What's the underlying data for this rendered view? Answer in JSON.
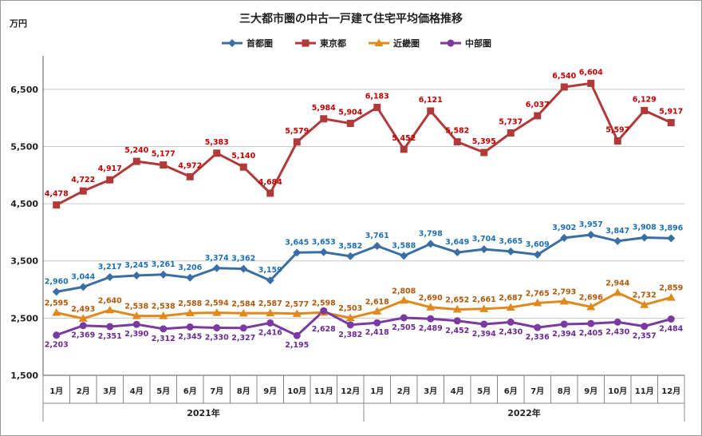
{
  "chart_data": {
    "type": "line",
    "title": "三大都市圏の中古一戸建て住宅平均価格推移",
    "ylabel": "万円",
    "ylim": [
      1500,
      7000
    ],
    "yticks": [
      "1,500",
      "2,500",
      "3,500",
      "4,500",
      "5,500",
      "6,500"
    ],
    "ytick_values": [
      1500,
      2500,
      3500,
      4500,
      5500,
      6500
    ],
    "grid": "horizontal",
    "legend_position": "top-center",
    "categories": [
      "1月",
      "2月",
      "3月",
      "4月",
      "5月",
      "6月",
      "7月",
      "8月",
      "9月",
      "10月",
      "11月",
      "12月",
      "1月",
      "2月",
      "3月",
      "4月",
      "5月",
      "6月",
      "7月",
      "8月",
      "9月",
      "10月",
      "11月",
      "12月"
    ],
    "year_groups": [
      {
        "label": "2021年",
        "count": 12
      },
      {
        "label": "2022年",
        "count": 12
      }
    ],
    "series": [
      {
        "name": "首都圏",
        "color": "#3a6ea5",
        "marker": "diamond",
        "values": [
          2960,
          3044,
          3217,
          3245,
          3261,
          3206,
          3374,
          3362,
          3159,
          3645,
          3653,
          3582,
          3761,
          3588,
          3798,
          3649,
          3704,
          3665,
          3609,
          3902,
          3957,
          3847,
          3908,
          3896
        ],
        "labels": [
          "2,960",
          "3,044",
          "3,217",
          "3,245",
          "3,261",
          "3,206",
          "3,374",
          "3,362",
          "3,159",
          "3,645",
          "3,653",
          "3,582",
          "3,761",
          "3,588",
          "3,798",
          "3,649",
          "3,704",
          "3,665",
          "3,609",
          "3,902",
          "3,957",
          "3,847",
          "3,908",
          "3,896"
        ]
      },
      {
        "name": "東京都",
        "color": "#b03a3a",
        "marker": "square",
        "values": [
          4478,
          4722,
          4917,
          5240,
          5177,
          4972,
          5383,
          5140,
          4684,
          5579,
          5984,
          5904,
          6183,
          5452,
          6121,
          5582,
          5395,
          5737,
          6037,
          6540,
          6604,
          5597,
          6129,
          5917
        ],
        "labels": [
          "4,478",
          "4,722",
          "4,917",
          "5,240",
          "5,177",
          "4,972",
          "5,383",
          "5,140",
          "4,684",
          "5,579",
          "5,984",
          "5,904",
          "6,183",
          "5,452",
          "6,121",
          "5,582",
          "5,395",
          "5,737",
          "6,037",
          "6,540",
          "6,604",
          "5,597",
          "6,129",
          "5,917"
        ]
      },
      {
        "name": "近畿圏",
        "color": "#e08a1e",
        "marker": "triangle",
        "values": [
          2595,
          2493,
          2640,
          2538,
          2538,
          2588,
          2594,
          2584,
          2587,
          2577,
          2598,
          2503,
          2618,
          2808,
          2690,
          2652,
          2661,
          2687,
          2765,
          2793,
          2696,
          2944,
          2732,
          2859
        ],
        "labels": [
          "2,595",
          "2,493",
          "2,640",
          "2,538",
          "2,538",
          "2,588",
          "2,594",
          "2,584",
          "2,587",
          "2,577",
          "2,598",
          "2,503",
          "2,618",
          "2,808",
          "2,690",
          "2,652",
          "2,661",
          "2,687",
          "2,765",
          "2,793",
          "2,696",
          "2,944",
          "2,732",
          "2,859"
        ]
      },
      {
        "name": "中部圏",
        "color": "#7a3aa0",
        "marker": "circle",
        "values": [
          2203,
          2369,
          2351,
          2390,
          2312,
          2345,
          2330,
          2327,
          2416,
          2195,
          2628,
          2382,
          2418,
          2505,
          2489,
          2452,
          2394,
          2430,
          2336,
          2394,
          2405,
          2430,
          2357,
          2484
        ],
        "labels": [
          "2,203",
          "2,369",
          "2,351",
          "2,390",
          "2,312",
          "2,345",
          "2,330",
          "2,327",
          "2,416",
          "2,195",
          "2,628",
          "2,382",
          "2,418",
          "2,505",
          "2,489",
          "2,452",
          "2,394",
          "2,430",
          "2,336",
          "2,394",
          "2,405",
          "2,430",
          "2,357",
          "2,484"
        ]
      }
    ],
    "label_colors": {
      "首都圏": "#1f6fb5",
      "東京都": "#c00000",
      "近畿圏": "#b4580a",
      "中部圏": "#6a2a96"
    }
  }
}
